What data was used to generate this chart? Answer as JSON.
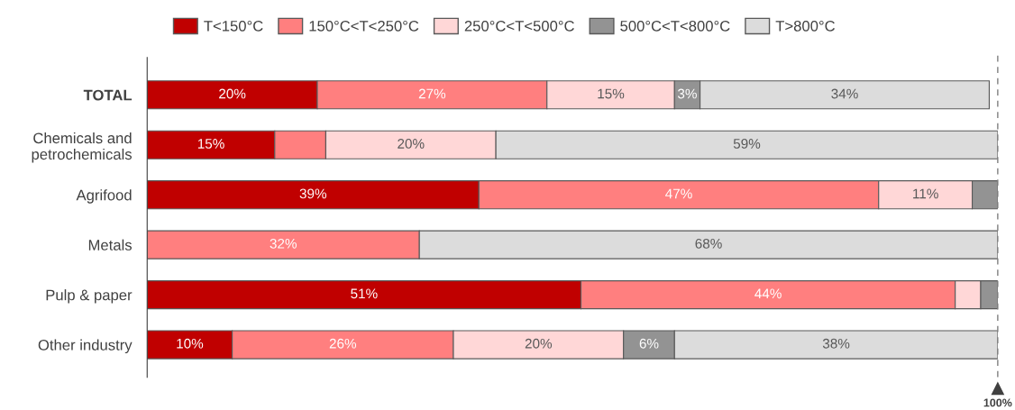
{
  "chart_data": {
    "type": "bar",
    "orientation": "horizontal",
    "stacked": true,
    "categories": [
      "TOTAL",
      "Chemicals and\npetrochemicals",
      "Agrifood",
      "Metals",
      "Pulp & paper",
      "Other industry"
    ],
    "xlim": [
      0,
      100
    ],
    "series": [
      {
        "name": "T<150°C",
        "color": "#c00000",
        "values": [
          20,
          15,
          39,
          null,
          51,
          10
        ],
        "value_labels": [
          "20%",
          "15%",
          "39%",
          null,
          "51%",
          "10%"
        ]
      },
      {
        "name": "150°C<T<250°C",
        "color": "#ff7f7f",
        "values": [
          27,
          6,
          47,
          32,
          44,
          26
        ],
        "value_labels": [
          "27%",
          null,
          "47%",
          "32%",
          "44%",
          "26%"
        ]
      },
      {
        "name": "250°C<T<500°C",
        "color": "#ffd7d7",
        "values": [
          15,
          20,
          11,
          null,
          3,
          20
        ],
        "value_labels": [
          "15%",
          "20%",
          "11%",
          null,
          null,
          "20%"
        ]
      },
      {
        "name": "500°C<T<800°C",
        "color": "#939393",
        "values": [
          3,
          null,
          3,
          null,
          2,
          6
        ],
        "value_labels": [
          "3%",
          null,
          null,
          null,
          null,
          "6%"
        ]
      },
      {
        "name": "T>800°C",
        "color": "#dcdcdc",
        "values": [
          34,
          59,
          null,
          68,
          null,
          38
        ],
        "value_labels": [
          "34%",
          "59%",
          null,
          "68%",
          null,
          "38%"
        ]
      }
    ],
    "ref_lines": [
      {
        "axis": "x",
        "value": 100,
        "label": "100%",
        "color": "#7f7f7f",
        "line_style": "dashed"
      }
    ],
    "legend": "top",
    "grid": false,
    "tick_labels": "y"
  }
}
